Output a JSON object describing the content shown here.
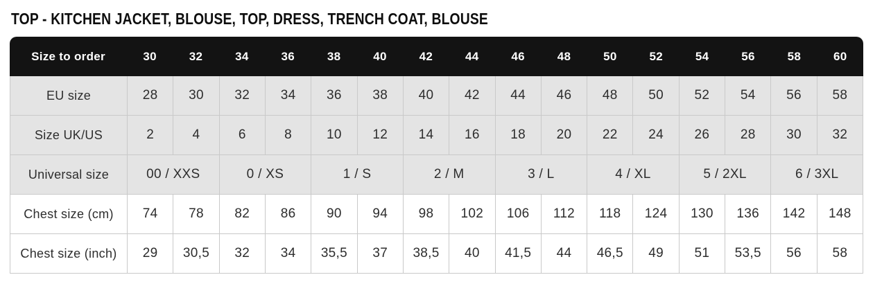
{
  "page": {
    "title": "TOP - KITCHEN JACKET, BLOUSE, TOP, DRESS, TRENCH COAT, BLOUSE"
  },
  "colors": {
    "header_bg": "#131313",
    "header_text": "#ffffff",
    "gray_row_bg": "#e4e4e4",
    "white_row_bg": "#ffffff",
    "border": "#c9c9c9",
    "body_text": "#2d2d2d"
  },
  "table": {
    "header": {
      "label": "Size to order",
      "values": [
        "30",
        "32",
        "34",
        "36",
        "38",
        "40",
        "42",
        "44",
        "46",
        "48",
        "50",
        "52",
        "54",
        "56",
        "58",
        "60"
      ]
    },
    "rows": [
      {
        "label": "EU size",
        "shade": "gray",
        "span": 1,
        "values": [
          "28",
          "30",
          "32",
          "34",
          "36",
          "38",
          "40",
          "42",
          "44",
          "46",
          "48",
          "50",
          "52",
          "54",
          "56",
          "58"
        ]
      },
      {
        "label": "Size UK/US",
        "shade": "gray",
        "span": 1,
        "values": [
          "2",
          "4",
          "6",
          "8",
          "10",
          "12",
          "14",
          "16",
          "18",
          "20",
          "22",
          "24",
          "26",
          "28",
          "30",
          "32"
        ]
      },
      {
        "label": "Universal size",
        "shade": "gray",
        "span": 2,
        "values": [
          "00 / XXS",
          "0 / XS",
          "1 / S",
          "2 / M",
          "3 / L",
          "4 / XL",
          "5 / 2XL",
          "6 / 3XL"
        ]
      },
      {
        "label": "Chest size (cm)",
        "shade": "white",
        "span": 1,
        "values": [
          "74",
          "78",
          "82",
          "86",
          "90",
          "94",
          "98",
          "102",
          "106",
          "112",
          "118",
          "124",
          "130",
          "136",
          "142",
          "148"
        ]
      },
      {
        "label": "Chest size (inch)",
        "shade": "white",
        "span": 1,
        "values": [
          "29",
          "30,5",
          "32",
          "34",
          "35,5",
          "37",
          "38,5",
          "40",
          "41,5",
          "44",
          "46,5",
          "49",
          "51",
          "53,5",
          "56",
          "58"
        ]
      }
    ]
  }
}
